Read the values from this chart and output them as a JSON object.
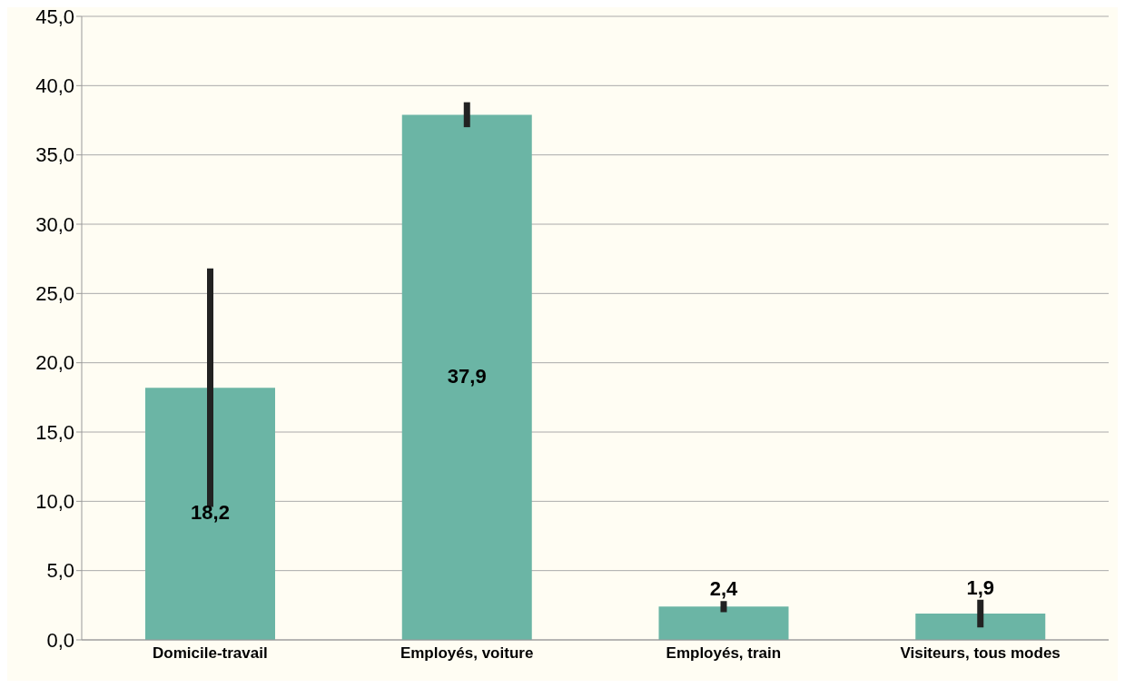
{
  "chart_data": {
    "type": "bar",
    "categories": [
      "Domicile-travail",
      "Employés, voiture",
      "Employés, train",
      "Visiteurs, tous modes"
    ],
    "values": [
      18.2,
      37.9,
      2.4,
      1.9
    ],
    "errors": [
      8.6,
      0.9,
      0.4,
      1.0
    ],
    "value_labels": [
      "18,2",
      "37,9",
      "2,4",
      "1,9"
    ],
    "color": "#6bb5a5",
    "ylim": [
      0,
      45
    ],
    "yticks": [
      {
        "value": 0,
        "label": "0,0"
      },
      {
        "value": 5,
        "label": "5,0"
      },
      {
        "value": 10,
        "label": "10,0"
      },
      {
        "value": 15,
        "label": "15,0"
      },
      {
        "value": 20,
        "label": "20,0"
      },
      {
        "value": 25,
        "label": "25,0"
      },
      {
        "value": 30,
        "label": "30,0"
      },
      {
        "value": 35,
        "label": "35,0"
      },
      {
        "value": 40,
        "label": "40,0"
      },
      {
        "value": 45,
        "label": "45,0"
      }
    ],
    "grid": "y",
    "legend": false
  }
}
